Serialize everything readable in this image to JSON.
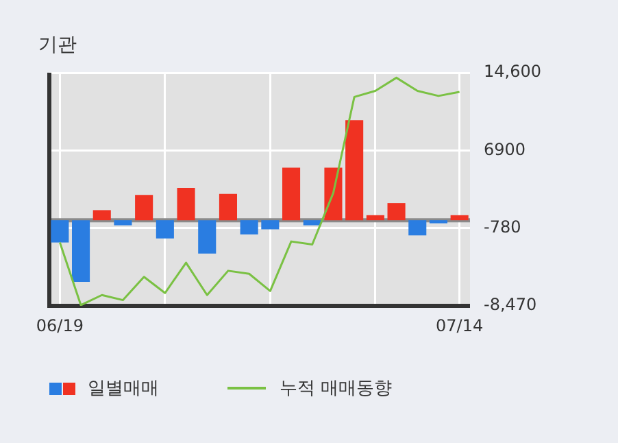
{
  "chart_data": {
    "type": "bar",
    "title": "기관",
    "categories": [
      "06/19",
      null,
      null,
      null,
      null,
      null,
      null,
      null,
      null,
      null,
      null,
      null,
      null,
      null,
      null,
      null,
      null,
      null,
      null,
      "07/14"
    ],
    "series": [
      {
        "name": "일별매매",
        "colors": [
          "#2a7de1",
          "#2a7de1",
          "#f03222",
          "#2a7de1",
          "#f03222",
          "#2a7de1",
          "#f03222",
          "#2a7de1",
          "#f03222",
          "#2a7de1",
          "#2a7de1",
          "#f03222",
          "#2a7de1",
          "#f03222",
          "#f03222",
          "#f03222",
          "#f03222",
          "#2a7de1",
          "#2a7de1",
          "#f03222"
        ],
        "values": [
          -2200,
          -6100,
          1000,
          -500,
          2500,
          -1800,
          3200,
          -3300,
          2600,
          -1400,
          -900,
          5200,
          -500,
          5200,
          9900,
          500,
          1700,
          -1500,
          -300,
          500
        ]
      },
      {
        "type": "line",
        "name": "누적 매매동향",
        "color": "#7ac143",
        "values": [
          -2200,
          -8400,
          -7400,
          -7900,
          -5600,
          -7200,
          -4200,
          -7400,
          -5000,
          -5300,
          -7000,
          -2100,
          -2400,
          2700,
          12200,
          12800,
          14100,
          12800,
          12300,
          12700
        ]
      }
    ],
    "ylim": [
      -8470,
      14600
    ],
    "yticks": [
      {
        "value": 14600,
        "label": "14,600"
      },
      6900,
      -780,
      {
        "value": -8470,
        "label": "-8,470"
      }
    ],
    "ref_lines": [
      {
        "axis": "y",
        "value": 0,
        "color": "#8a8a8a"
      }
    ],
    "grid": true,
    "legend": "bottom",
    "marker": "none",
    "line_style": "solid"
  }
}
